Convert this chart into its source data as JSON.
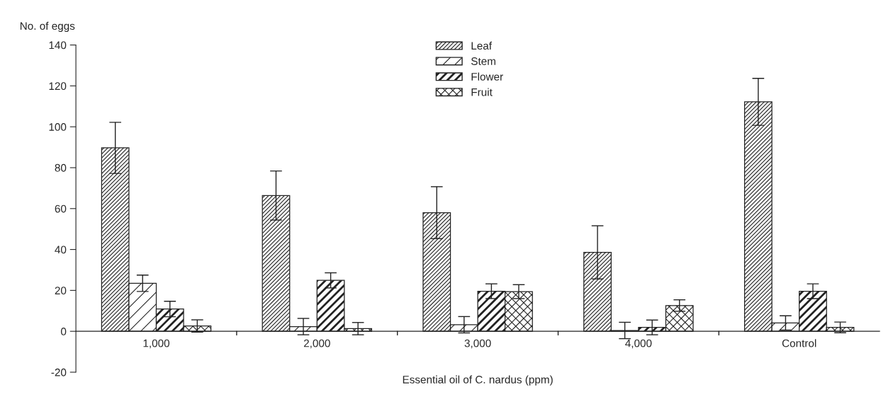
{
  "chart_data": {
    "type": "bar",
    "ylabel": "No. of eggs",
    "xlabel": "Essential oil of C. nardus (ppm)",
    "categories": [
      "1,000",
      "2,000",
      "3,000",
      "4,000",
      "Control"
    ],
    "series": [
      {
        "name": "Leaf",
        "color": "#222222",
        "values": [
          89.7,
          66.4,
          58,
          38.6,
          112.2
        ],
        "errors": [
          12.5,
          12,
          12.7,
          13,
          11.5
        ]
      },
      {
        "name": "Stem",
        "color": "#222222",
        "values": [
          23.5,
          2.3,
          3.2,
          0.4,
          4.1
        ],
        "errors": [
          4,
          4,
          4,
          4,
          3.5
        ]
      },
      {
        "name": "Flower",
        "color": "#222222",
        "values": [
          10.9,
          24.9,
          19.6,
          1.9,
          19.6
        ],
        "errors": [
          3.8,
          3.7,
          3.6,
          3.6,
          3.6
        ]
      },
      {
        "name": "Fruit",
        "color": "#222222",
        "values": [
          2.6,
          1.3,
          19.4,
          12.6,
          1.9
        ],
        "errors": [
          3,
          3,
          3.4,
          2.8,
          2.6
        ]
      }
    ],
    "ylim": [
      -20,
      140
    ],
    "yticks": [
      -20,
      0,
      20,
      40,
      60,
      80,
      100,
      120,
      140
    ],
    "grid": false,
    "legend": "top"
  }
}
